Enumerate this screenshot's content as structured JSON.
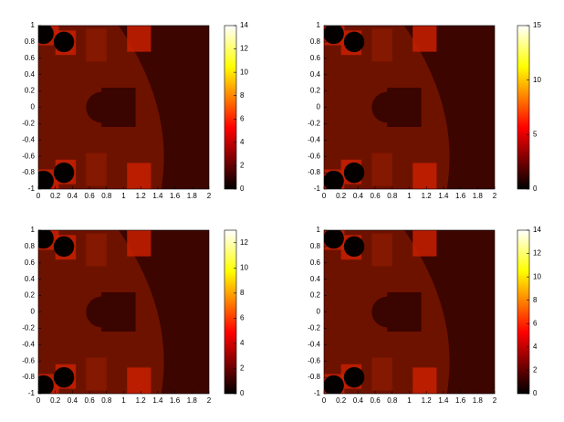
{
  "chart_data": [
    {
      "type": "image",
      "xlim": [
        0,
        2
      ],
      "xticks": [
        0,
        0.2,
        0.4,
        0.6,
        0.8,
        1,
        1.2,
        1.4,
        1.6,
        1.8,
        2
      ],
      "ylim": [
        -1,
        1
      ],
      "yticks": [
        -1,
        -0.8,
        -0.6,
        -0.4,
        -0.2,
        0,
        0.2,
        0.4,
        0.6,
        0.8,
        1
      ],
      "colorbar": {
        "lim": [
          0,
          14
        ],
        "ticks": [
          0,
          2,
          4,
          6,
          8,
          10,
          12,
          14
        ]
      }
    },
    {
      "type": "image",
      "xlim": [
        0,
        2
      ],
      "xticks": [
        0,
        0.2,
        0.4,
        0.6,
        0.8,
        1,
        1.2,
        1.4,
        1.6,
        1.8,
        2
      ],
      "ylim": [
        -1,
        1
      ],
      "yticks": [
        -1,
        -0.8,
        -0.6,
        -0.4,
        -0.2,
        0,
        0.2,
        0.4,
        0.6,
        0.8,
        1
      ],
      "colorbar": {
        "lim": [
          0,
          15
        ],
        "ticks": [
          0,
          5,
          10,
          15
        ]
      }
    },
    {
      "type": "image",
      "xlim": [
        0,
        2
      ],
      "xticks": [
        0,
        0.2,
        0.4,
        0.6,
        0.8,
        1,
        1.2,
        1.4,
        1.6,
        1.8,
        2
      ],
      "ylim": [
        -1,
        1
      ],
      "yticks": [
        -1,
        -0.8,
        -0.6,
        -0.4,
        -0.2,
        0,
        0.2,
        0.4,
        0.6,
        0.8,
        1
      ],
      "colorbar": {
        "lim": [
          0,
          13
        ],
        "ticks": [
          0,
          2,
          4,
          6,
          8,
          10,
          12
        ]
      }
    },
    {
      "type": "image",
      "xlim": [
        0,
        2
      ],
      "xticks": [
        0,
        0.2,
        0.4,
        0.6,
        0.8,
        1,
        1.2,
        1.4,
        1.6,
        1.8,
        2
      ],
      "ylim": [
        -1,
        1
      ],
      "yticks": [
        -1,
        -0.8,
        -0.6,
        -0.4,
        -0.2,
        0,
        0.2,
        0.4,
        0.6,
        0.8,
        1
      ],
      "colorbar": {
        "lim": [
          0,
          14
        ],
        "ticks": [
          0,
          2,
          4,
          6,
          8,
          10,
          12,
          14
        ]
      }
    }
  ]
}
